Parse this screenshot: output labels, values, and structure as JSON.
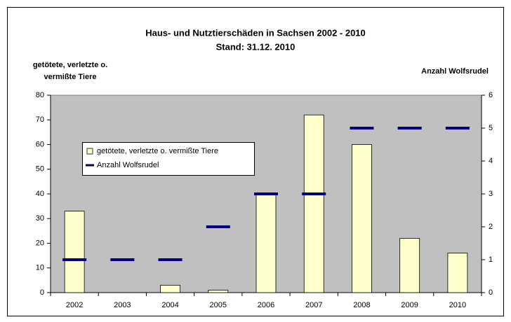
{
  "chart_data": {
    "type": "bar",
    "title": "Haus- und Nutztierschäden in Sachsen 2002 - 2010",
    "subtitle": "Stand: 31.12. 2010",
    "ylabel": [
      "getötete, verletzte o.",
      "vermißte Tiere"
    ],
    "y2label": "Anzahl Wolfsrudel",
    "categories": [
      "2002",
      "2003",
      "2004",
      "2005",
      "2006",
      "2007",
      "2008",
      "2009",
      "2010"
    ],
    "series": [
      {
        "name": "getötete, verletzte o. vermißte Tiere",
        "type": "bar",
        "color": "#ffffcc",
        "values": [
          33,
          0,
          3,
          1,
          40,
          72,
          60,
          22,
          16
        ]
      },
      {
        "name": "Anzahl Wolfsrudel",
        "type": "marker",
        "axis": "y2",
        "color": "#000080",
        "values": [
          1,
          1,
          1,
          2,
          3,
          3,
          5,
          5,
          5
        ]
      }
    ],
    "ylim": [
      0,
      80
    ],
    "yticks": [
      0,
      10,
      20,
      30,
      40,
      50,
      60,
      70,
      80
    ],
    "y2lim": [
      0,
      6
    ],
    "y2ticks": [
      0,
      1,
      2,
      3,
      4,
      5,
      6
    ],
    "grid": false,
    "plot_background": "#c0c0c0"
  }
}
